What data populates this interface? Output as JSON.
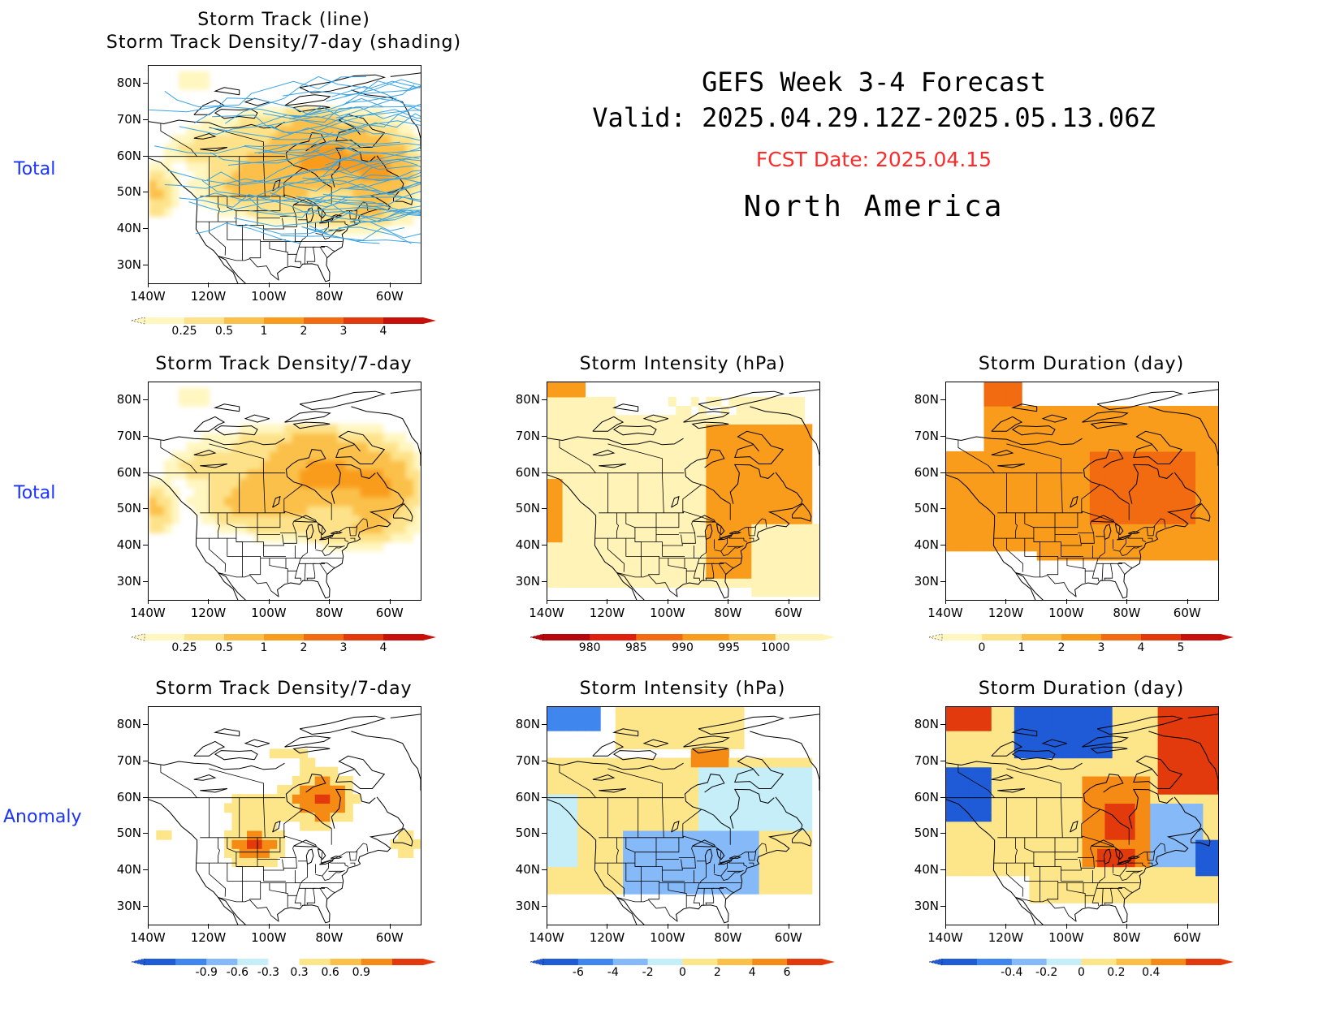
{
  "header": {
    "title": "GEFS Week 3-4 Forecast",
    "valid": "Valid: 2025.04.29.12Z-2025.05.13.06Z",
    "fcst_date": "FCST Date: 2025.04.15",
    "region": "North America",
    "fcst_color": "#ff2a2a"
  },
  "row_labels": [
    "Total",
    "Total",
    "Anomaly"
  ],
  "lat_labels": [
    "80N",
    "70N",
    "60N",
    "50N",
    "40N",
    "30N"
  ],
  "lon_labels": [
    "140W",
    "120W",
    "100W",
    "80W",
    "60W"
  ],
  "panels": [
    {
      "id": "p0",
      "title_lines": [
        "Storm Track (line)",
        "Storm Track Density/7-day (shading)"
      ],
      "field": "density_total",
      "tracks": true,
      "colorbar": {
        "ticks": [
          "0.25",
          "0.5",
          "1",
          "2",
          "3",
          "4"
        ],
        "colors": [
          "#fff6c0",
          "#fde28a",
          "#fbc04a",
          "#f99c1c",
          "#f26b10",
          "#e33a0d",
          "#c8100a"
        ]
      }
    },
    {
      "id": "p1",
      "title_lines": [
        "Storm Track Density/7-day"
      ],
      "field": "density_total",
      "tracks": false,
      "colorbar": {
        "ticks": [
          "0.25",
          "0.5",
          "1",
          "2",
          "3",
          "4"
        ],
        "colors": [
          "#fff6c0",
          "#fde28a",
          "#fbc04a",
          "#f99c1c",
          "#f26b10",
          "#e33a0d",
          "#c8100a"
        ]
      }
    },
    {
      "id": "p2",
      "title_lines": [
        "Storm Intensity (hPa)"
      ],
      "field": "intensity_total",
      "tracks": false,
      "colorbar": {
        "ticks": [
          "980",
          "985",
          "990",
          "995",
          "1000"
        ],
        "colors": [
          "#b5080a",
          "#e0200e",
          "#f26b10",
          "#f99c1c",
          "#fbc04a",
          "#fff3b8"
        ]
      }
    },
    {
      "id": "p3",
      "title_lines": [
        "Storm Duration (day)"
      ],
      "field": "duration_total",
      "tracks": false,
      "colorbar": {
        "ticks": [
          "0",
          "1",
          "2",
          "3",
          "4",
          "5"
        ],
        "colors": [
          "#fff6c0",
          "#fde28a",
          "#fbc04a",
          "#f99c1c",
          "#f26b10",
          "#e33a0d",
          "#c8100a"
        ]
      }
    },
    {
      "id": "p4",
      "title_lines": [
        "Storm Track Density/7-day"
      ],
      "field": "density_anom",
      "tracks": false,
      "colorbar": {
        "ticks": [
          "-0.9",
          "-0.6",
          "-0.3",
          "0.3",
          "0.6",
          "0.9"
        ],
        "colors": [
          "#1f5bd6",
          "#3f86ee",
          "#86b9f7",
          "#c5eef8",
          "#ffffff",
          "#fde58a",
          "#fbc04a",
          "#f58a14",
          "#e33a0d"
        ]
      }
    },
    {
      "id": "p5",
      "title_lines": [
        "Storm Intensity (hPa)"
      ],
      "field": "intensity_anom",
      "tracks": false,
      "colorbar": {
        "ticks": [
          "-6",
          "-4",
          "-2",
          "0",
          "2",
          "4",
          "6"
        ],
        "colors": [
          "#1f5bd6",
          "#3f86ee",
          "#86b9f7",
          "#c5eef8",
          "#fde58a",
          "#fbc04a",
          "#f58a14",
          "#e33a0d"
        ]
      }
    },
    {
      "id": "p6",
      "title_lines": [
        "Storm Duration (day)"
      ],
      "field": "duration_anom",
      "tracks": false,
      "colorbar": {
        "ticks": [
          "-0.4",
          "-0.2",
          "0",
          "0.2",
          "0.4"
        ],
        "colors": [
          "#1f5bd6",
          "#3f86ee",
          "#86b9f7",
          "#c5eef8",
          "#fde58a",
          "#fbc04a",
          "#f58a14",
          "#e33a0d"
        ]
      }
    }
  ],
  "colors": {
    "track_line": "#3ba3e3",
    "coast_line": "#000000",
    "density_levels": [
      "#fff6c0",
      "#fde28a",
      "#fbc04a",
      "#f99c1c",
      "#f26b10",
      "#e33a0d"
    ],
    "neg_levels": [
      "#c5eef8",
      "#86b9f7",
      "#3f86ee",
      "#1f5bd6"
    ],
    "pos_levels": [
      "#fde58a",
      "#fbc04a",
      "#f58a14",
      "#e33a0d"
    ]
  }
}
